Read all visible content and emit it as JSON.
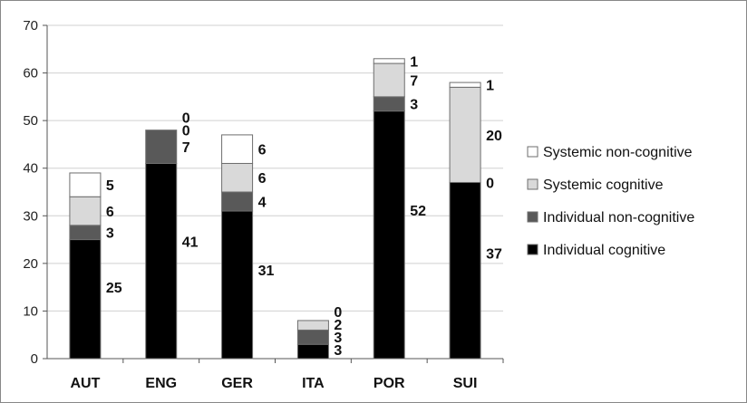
{
  "chart_data": {
    "type": "bar",
    "stacked": true,
    "categories": [
      "AUT",
      "ENG",
      "GER",
      "ITA",
      "POR",
      "SUI"
    ],
    "series": [
      {
        "name": "Individual cognitive",
        "color": "#000000",
        "values": [
          25,
          41,
          31,
          3,
          52,
          37
        ]
      },
      {
        "name": "Individual non-cognitive",
        "color": "#595959",
        "values": [
          3,
          7,
          4,
          3,
          3,
          0
        ]
      },
      {
        "name": "Systemic cognitive",
        "color": "#d9d9d9",
        "values": [
          6,
          0,
          6,
          2,
          7,
          20
        ]
      },
      {
        "name": "Systemic non-cognitive",
        "color": "#ffffff",
        "values": [
          5,
          0,
          6,
          0,
          1,
          1
        ]
      }
    ],
    "ylim": [
      0,
      70
    ],
    "yticks": [
      0,
      10,
      20,
      30,
      40,
      50,
      60,
      70
    ],
    "title": "",
    "xlabel": "",
    "ylabel": "",
    "grid": true,
    "legend_placement": "right",
    "legend_order": [
      3,
      2,
      1,
      0
    ]
  }
}
